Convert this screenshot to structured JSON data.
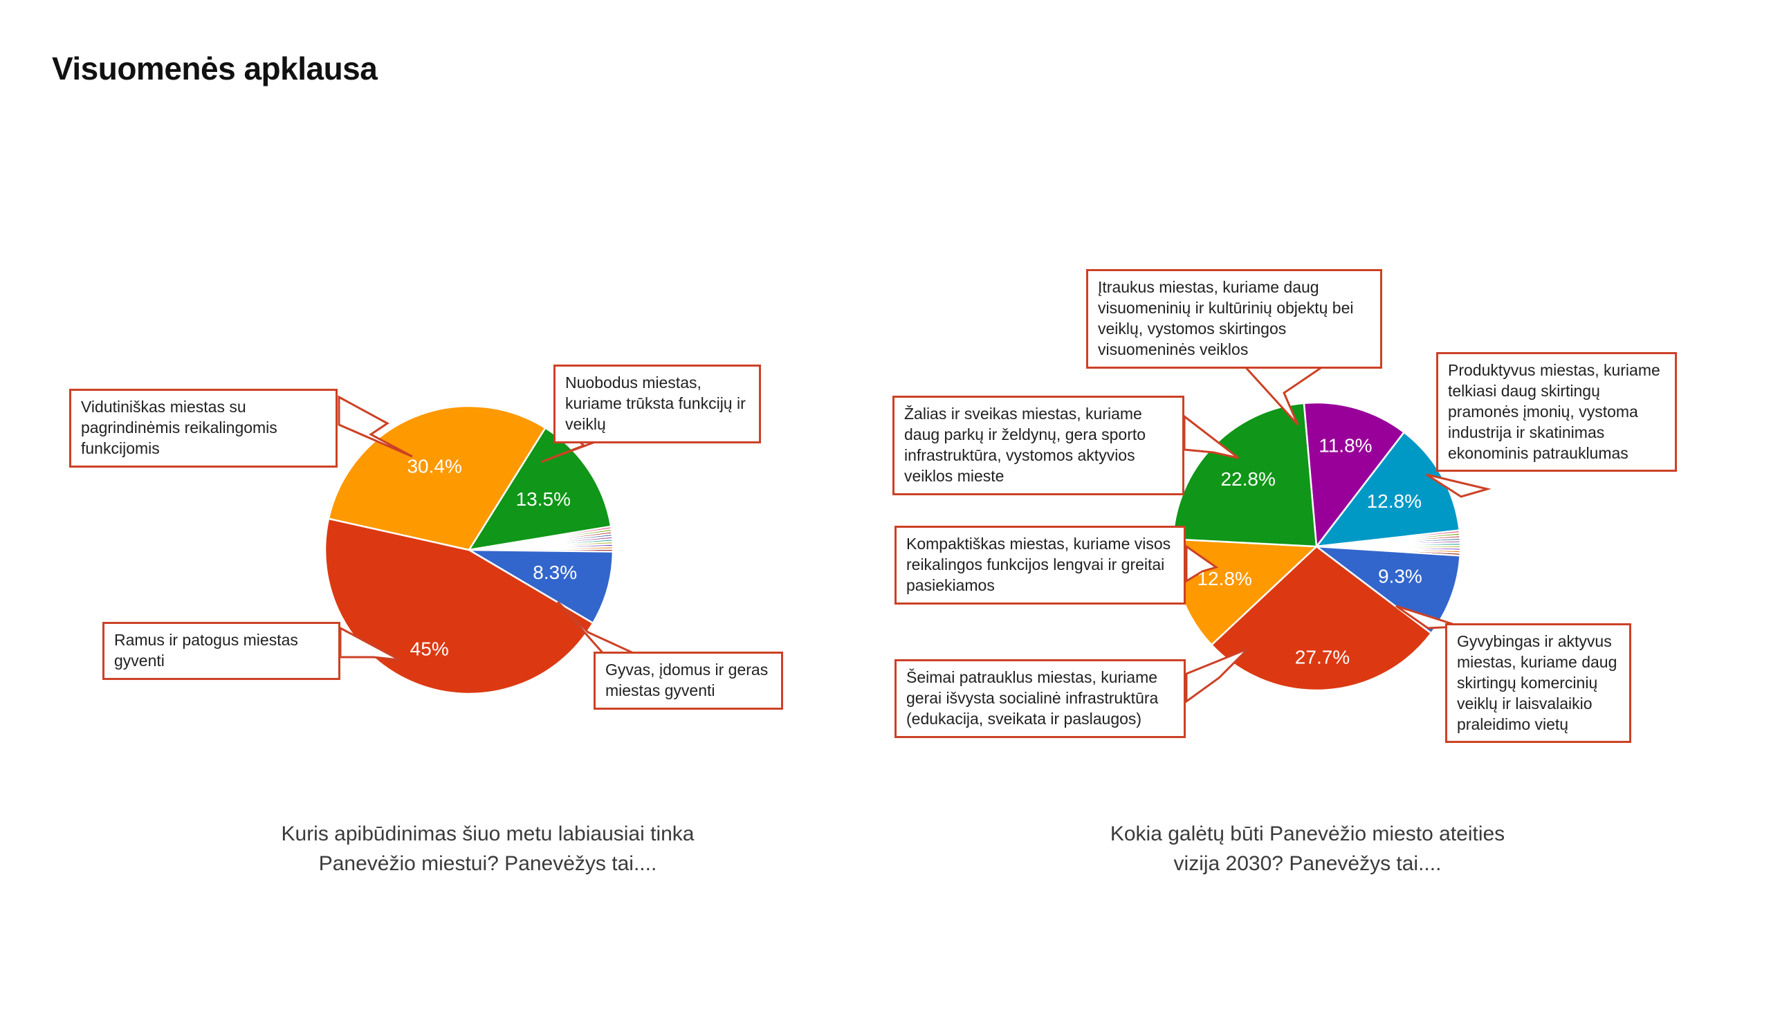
{
  "page_title": "Visuomenės apklausa",
  "accent_color": "#cc4125",
  "chart_data": [
    {
      "type": "pie",
      "title": "Kuris apibūdinimas šiuo metu labiausiai tinka Panevėžio miestui? Panevėžys tai....",
      "title_lines": [
        "Kuris apibūdinimas šiuo metu labiausiai tinka",
        "Panevėžio miestui? Panevėžys tai...."
      ],
      "legend_position": "none",
      "labels_inside": true,
      "start_angle_deg": 32,
      "slices": [
        {
          "label": "Nuobodus miestas, kuriame trūksta funkcijų ir veiklų",
          "pct": 13.5,
          "pct_label": "13.5%",
          "color": "#109618"
        },
        {
          "label": "",
          "pct": 2.8,
          "sliver_colors": [
            "#DD4477",
            "#66AA00",
            "#B82E2E",
            "#316395",
            "#994499",
            "#22AA99",
            "#AAAA11",
            "#6633CC",
            "#E67300",
            "#8B0707"
          ]
        },
        {
          "label": "Gyvas, įdomus ir geras miestas gyventi",
          "pct": 8.3,
          "pct_label": "8.3%",
          "color": "#3366CC"
        },
        {
          "label": "Ramus ir patogus miestas gyventi",
          "pct": 45,
          "pct_label": "45%",
          "color": "#DC3912",
          "label_r": 0.75
        },
        {
          "label": "Vidutiniškas miestas su pagrindinėmis reikalingomis funkcijomis",
          "pct": 30.4,
          "pct_label": "30.4%",
          "color": "#FF9900",
          "label_r": 0.62
        }
      ]
    },
    {
      "type": "pie",
      "title": "Kokia galėtų būti Panevėžio miesto ateities vizija 2030? Panevėžys tai....",
      "title_lines": [
        "Kokia galėtų būti Panevėžio miesto ateities",
        "vizija 2030? Panevėžys tai...."
      ],
      "legend_position": "none",
      "labels_inside": true,
      "start_angle_deg": -5,
      "slices": [
        {
          "label": "Įtraukus miestas, kuriame daug visuomeninių ir kultūrinių objektų bei veiklų, vystomos skirtingos visuomeninės veiklos",
          "pct": 11.8,
          "pct_label": "11.8%",
          "color": "#990099",
          "label_r": 0.72
        },
        {
          "label": "Produktyvus miestas, kuriame telkiasi daug skirtingų pramonės įmonių, vystoma industrija ir skatinimas ekonominis patrauklumas",
          "pct": 12.8,
          "pct_label": "12.8%",
          "color": "#0099C6",
          "label_r": 0.62
        },
        {
          "label": "",
          "pct": 2.8,
          "sliver_colors": [
            "#DD4477",
            "#66AA00",
            "#B82E2E",
            "#316395",
            "#994499",
            "#22AA99",
            "#AAAA11",
            "#6633CC",
            "#E67300",
            "#8B0707"
          ]
        },
        {
          "label": "Gyvybingas ir aktyvus miestas, kuriame daug skirtingų komercinių veiklų ir laisvalaikio praleidimo vietų",
          "pct": 9.3,
          "pct_label": "9.3%",
          "color": "#3366CC",
          "label_r": 0.62
        },
        {
          "label": "Šeimai patrauklus miestas, kuriame gerai išvysta socialinė infrastruktūra (edukacija, sveikata ir paslaugos)",
          "pct": 27.7,
          "pct_label": "27.7%",
          "color": "#DC3912",
          "label_r": 0.78
        },
        {
          "label": "Kompaktiškas miestas, kuriame visos reikalingos funkcijos lengvai ir greitai pasiekiamos",
          "pct": 12.8,
          "pct_label": "12.8%",
          "color": "#FF9900",
          "label_r": 0.68
        },
        {
          "label": "Žalias ir sveikas miestas, kuriame daug parkų ir želdynų, gera sporto infrastruktūra, vystomos aktyvios veiklos mieste",
          "pct": 22.8,
          "pct_label": "22.8%",
          "color": "#109618",
          "label_r": 0.66
        }
      ]
    }
  ]
}
